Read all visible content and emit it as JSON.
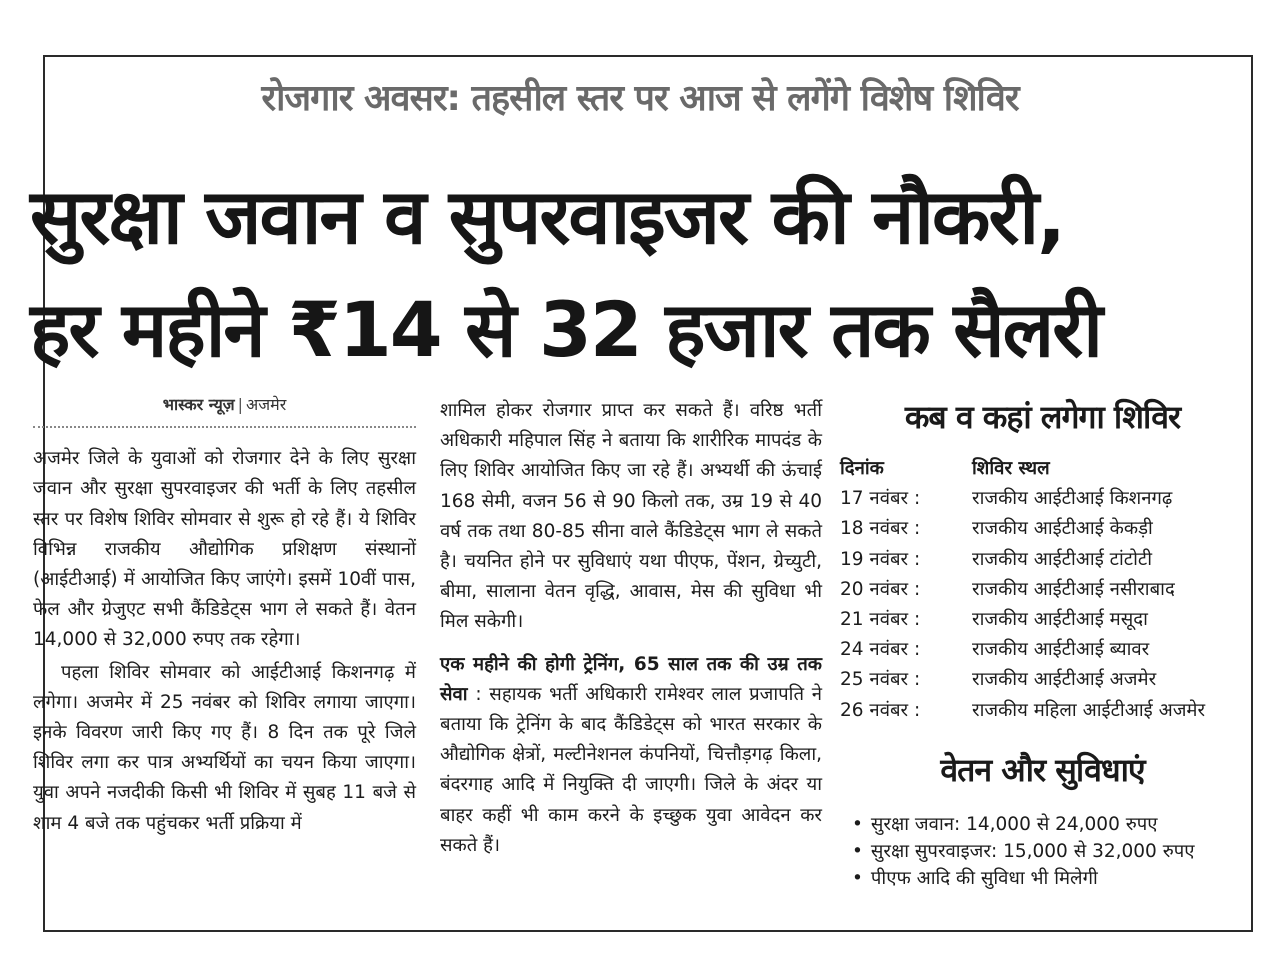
{
  "kicker": "रोजगार अवसर: तहसील स्तर पर आज से लगेंगे विशेष शिविर",
  "headline": [
    "सुरक्षा जवान व सुपरवाइजर की नौकरी,",
    "हर महीने ₹14 से 32 हजार तक सैलरी"
  ],
  "byline": {
    "source": "भास्कर न्यूज़",
    "place": "अजमेर"
  },
  "left_column": [
    "अजमेर जिले के युवाओं को रोजगार देने के लिए सुरक्षा जवान और सुरक्षा सुपरवाइजर की भर्ती के लिए तहसील स्तर पर विशेष शिविर सोमवार से शुरू हो रहे हैं। ये शिविर विभिन्न राजकीय औद्योगिक प्रशिक्षण संस्थानों (आईटीआई) में आयोजित किए जाएंगे। इसमें 10वीं पास, फेल और ग्रेजुएट सभी कैंडिडेट्स भाग ले सकते हैं। वेतन 14,000 से 32,000 रुपए तक रहेगा।",
    "पहला शिविर सोमवार को आईटीआई किशनगढ़ में लगेगा। अजमेर में 25 नवंबर को शिविर लगाया जाएगा। इनके विवरण जारी किए गए हैं। 8 दिन तक पूरे जिले शिविर लगा कर पात्र अभ्यर्थियों का चयन किया जाएगा। युवा अपने नजदीकी किसी भी शिविर में सुबह 11 बजे से शाम 4 बजे तक पहुंचकर भर्ती प्रक्रिया में"
  ],
  "middle_column": {
    "para1": "शामिल होकर रोजगार प्राप्त कर सकते हैं। वरिष्ठ भर्ती अधिकारी महिपाल सिंह ने बताया कि शारीरिक मापदंड के लिए शिविर आयोजित किए जा रहे हैं। अभ्यर्थी की ऊंचाई 168 सेमी, वजन 56 से 90 किलो तक, उम्र 19 से 40 वर्ष तक तथा 80-85 सीना वाले कैंडिडेट्स भाग ले सकते है। चयनित होने पर सुविधाएं यथा पीएफ, पेंशन, ग्रेच्युटी, बीमा, सालाना वेतन वृद्धि, आवास, मेस की सुविधा भी मिल सकेगी।",
    "lead": "एक महीने की होगी ट्रेनिंग, 65 साल तक की उम्र तक सेवा",
    "para2": " : सहायक भर्ती अधिकारी रामेश्वर लाल प्रजापति ने बताया कि ट्रेनिंग के बाद कैंडिडेट्स को भारत सरकार के औद्योगिक क्षेत्रों, मल्टीनेशनल कंपनियों, चित्तौड़गढ़ किला, बंदरगाह आदि में नियुक्ति दी जाएगी। जिले के अंदर या बाहर कहीं भी काम करने के इच्छुक युवा आवेदन कर सकते हैं।"
  },
  "schedule": {
    "title": "कब व कहां लगेगा शिविर",
    "headers": [
      "दिनांक",
      "शिविर स्थल"
    ],
    "rows": [
      [
        "17 नवंबर :",
        "राजकीय आईटीआई किशनगढ़"
      ],
      [
        "18 नवंबर :",
        "राजकीय आईटीआई केकड़ी"
      ],
      [
        "19 नवंबर :",
        "राजकीय आईटीआई टांटोटी"
      ],
      [
        "20 नवंबर :",
        "राजकीय आईटीआई नसीराबाद"
      ],
      [
        "21 नवंबर :",
        "राजकीय आईटीआई मसूदा"
      ],
      [
        "24 नवंबर :",
        "राजकीय आईटीआई ब्यावर"
      ],
      [
        "25 नवंबर :",
        "राजकीय आईटीआई अजमेर"
      ],
      [
        "26 नवंबर :",
        "राजकीय महिला आईटीआई अजमेर"
      ]
    ]
  },
  "salary": {
    "title": "वेतन और सुविधाएं",
    "items": [
      "सुरक्षा जवान: 14,000 से 24,000 रुपए",
      "सुरक्षा सुपरवाइजर: 15,000 से 32,000 रुपए",
      "पीएफ आदि की सुविधा भी मिलेगी"
    ]
  }
}
